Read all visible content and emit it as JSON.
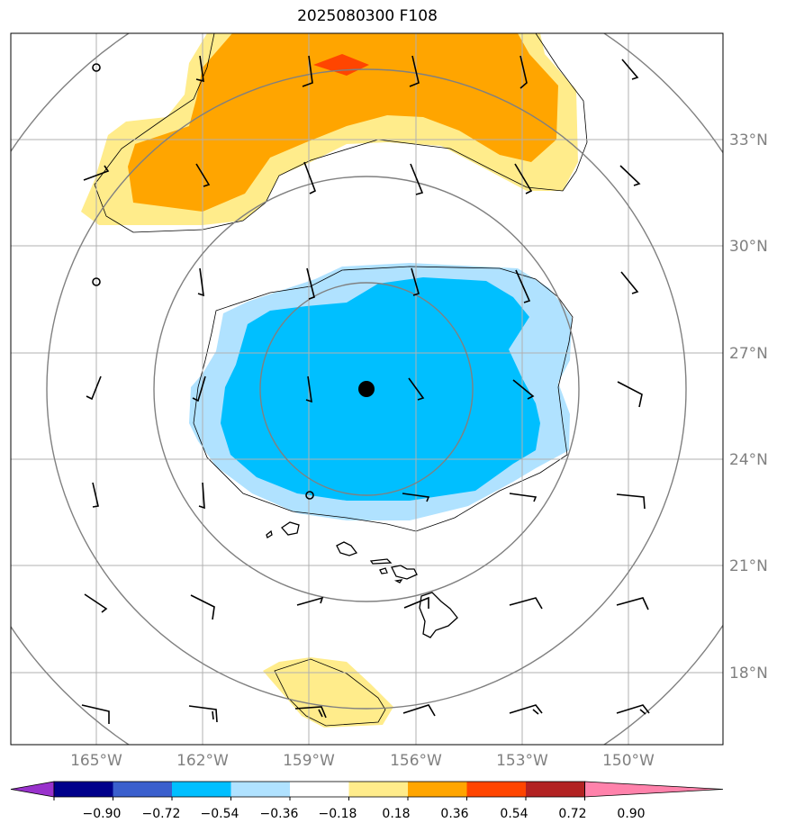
{
  "title": "2025080300 F108",
  "lat_labels": [
    "33°N",
    "30°N",
    "27°N",
    "24°N",
    "21°N",
    "18°N"
  ],
  "lon_labels": [
    "165°W",
    "162°W",
    "159°W",
    "156°W",
    "153°W",
    "150°W"
  ],
  "colorbar": {
    "tick_labels": [
      "−0.90",
      "−0.72",
      "−0.54",
      "−0.36",
      "−0.18",
      "0.18",
      "0.36",
      "0.54",
      "0.72",
      "0.90"
    ],
    "colors": [
      "#9932cc",
      "#00008b",
      "#3a5fcd",
      "#00bfff",
      "#b0e2ff",
      "#ffffff",
      "#ffec8b",
      "#ffa500",
      "#ff4500",
      "#b22222",
      "#ff82ab"
    ]
  },
  "fill_colors": {
    "positive_weak": "#ffec8b",
    "positive_mid": "#ffa500",
    "positive_strong": "#ff4500",
    "negative_weak": "#b0e2ff",
    "negative_mid": "#00bfff"
  },
  "storm_center_color": "#000000",
  "grid_color": "#b0b0b0",
  "range_ring_color": "#808080"
}
